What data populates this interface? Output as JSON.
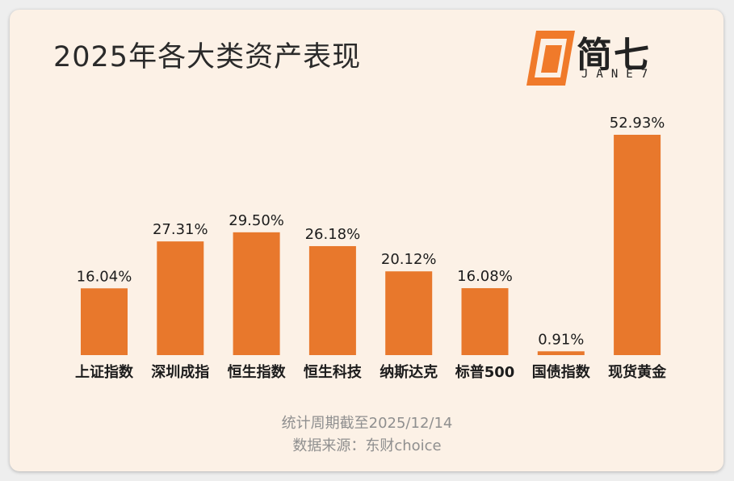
{
  "title": "2025年各大类资产表现",
  "logo": {
    "cn": "简七",
    "en": "JANE7",
    "icon": "logo-mark-icon"
  },
  "footer": {
    "line1": "统计周期截至2025/12/14",
    "line2": "数据来源：东财choice"
  },
  "colors": {
    "bar": "#e8782c",
    "background": "#fcf1e6",
    "logo_orange": "#f07a2a"
  },
  "chart_data": {
    "type": "bar",
    "title": "2025年各大类资产表现",
    "categories": [
      "上证指数",
      "深圳成指",
      "恒生指数",
      "恒生科技",
      "纳斯达克",
      "标普500",
      "国债指数",
      "现货黄金"
    ],
    "values": [
      16.04,
      27.31,
      29.5,
      26.18,
      20.12,
      16.08,
      0.91,
      52.93
    ],
    "labels": [
      "16.04%",
      "27.31%",
      "29.50%",
      "26.18%",
      "20.12%",
      "16.08%",
      "0.91%",
      "52.93%"
    ],
    "unit": "%",
    "ylim": [
      0,
      52.93
    ],
    "grid": false,
    "legend": "none"
  }
}
